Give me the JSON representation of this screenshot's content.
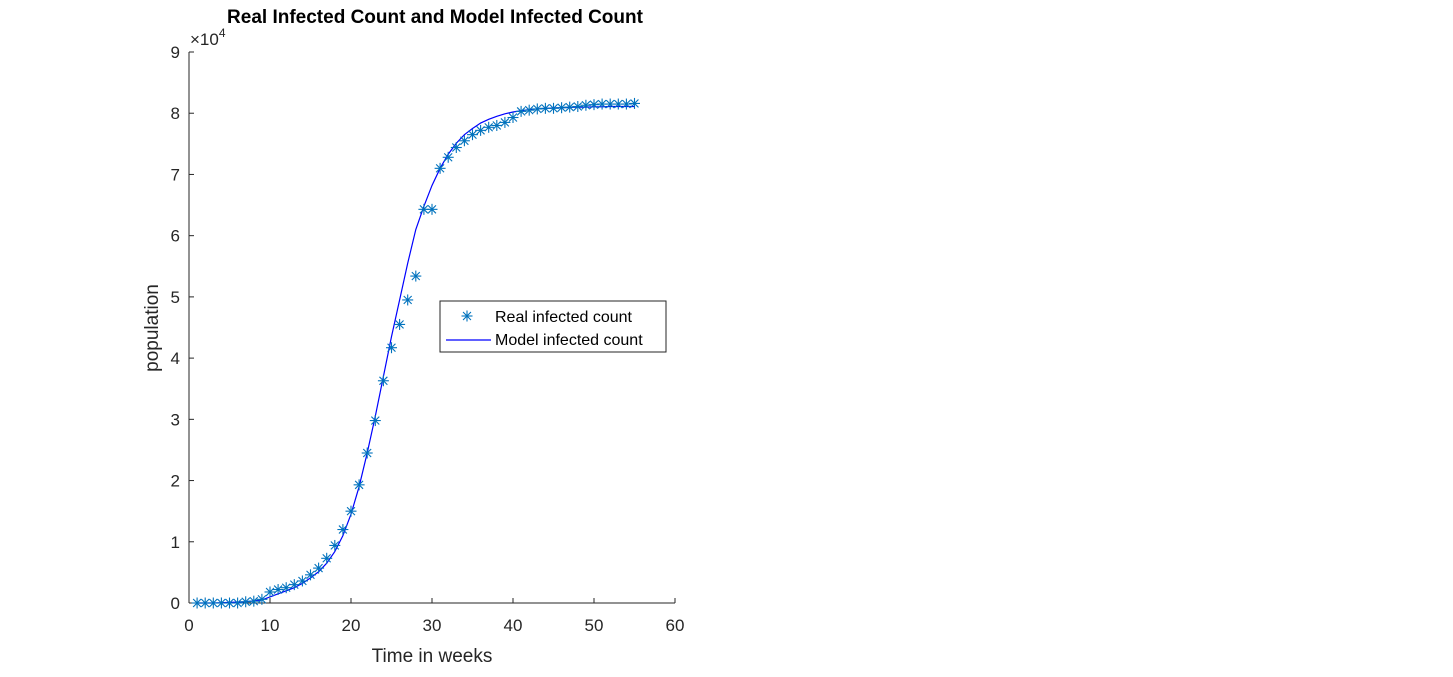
{
  "chart_data": {
    "type": "scatter",
    "title": "Real Infected Count and Model Infected Count",
    "xlabel": "Time in weeks",
    "ylabel": "population",
    "y_exponent_label": "×10",
    "y_exponent_power": "4",
    "xlim": [
      0,
      60
    ],
    "ylim": [
      0,
      90000
    ],
    "x_ticks": [
      "0",
      "10",
      "20",
      "30",
      "40",
      "50",
      "60"
    ],
    "y_ticks": [
      "0",
      "1",
      "2",
      "3",
      "4",
      "5",
      "6",
      "7",
      "8",
      "9"
    ],
    "grid": false,
    "legend_position": "center-right",
    "colors": {
      "real": "#0072BD",
      "model": "#0000FF",
      "axis": "#262626"
    },
    "series": [
      {
        "name": "Real infected count",
        "kind": "markers",
        "marker": "asterisk",
        "x": [
          1,
          2,
          3,
          4,
          5,
          6,
          7,
          8,
          9,
          10,
          11,
          12,
          13,
          14,
          15,
          16,
          17,
          18,
          19,
          20,
          21,
          22,
          23,
          24,
          25,
          26,
          27,
          28,
          29,
          30,
          31,
          32,
          33,
          34,
          35,
          36,
          37,
          38,
          39,
          40,
          41,
          42,
          43,
          44,
          45,
          46,
          47,
          48,
          49,
          50,
          51,
          52,
          53,
          54,
          55
        ],
        "y": [
          0,
          0,
          0,
          0,
          0,
          0,
          200,
          300,
          600,
          1800,
          2200,
          2500,
          3000,
          3600,
          4600,
          5700,
          7300,
          9400,
          12000,
          15000,
          19300,
          24500,
          29800,
          36300,
          41700,
          45500,
          49500,
          53400,
          64300,
          64300,
          71000,
          72800,
          74400,
          75500,
          76500,
          77200,
          77700,
          78000,
          78500,
          79300,
          80300,
          80500,
          80700,
          80800,
          80800,
          80900,
          81000,
          81100,
          81300,
          81400,
          81500,
          81500,
          81500,
          81500,
          81600
        ]
      },
      {
        "name": "Model infected count",
        "kind": "line",
        "x": [
          1,
          2,
          3,
          4,
          5,
          6,
          7,
          8,
          9,
          10,
          11,
          12,
          13,
          14,
          15,
          16,
          17,
          18,
          19,
          20,
          21,
          22,
          23,
          24,
          25,
          26,
          27,
          28,
          29,
          30,
          31,
          32,
          33,
          34,
          35,
          36,
          37,
          38,
          39,
          40,
          41,
          42,
          43,
          44,
          45,
          46,
          47,
          48,
          49,
          50,
          51,
          52,
          53,
          54,
          55
        ],
        "y": [
          0,
          0,
          0,
          50,
          100,
          150,
          200,
          350,
          500,
          1000,
          1500,
          2000,
          2500,
          3200,
          4100,
          5100,
          6500,
          8400,
          11000,
          14500,
          19000,
          24500,
          30500,
          37000,
          43500,
          49500,
          55500,
          61000,
          64800,
          68200,
          71000,
          73300,
          75100,
          76500,
          77500,
          78400,
          79000,
          79500,
          79900,
          80200,
          80400,
          80600,
          80700,
          80800,
          80850,
          80900,
          80950,
          81000,
          81000,
          81050,
          81050,
          81100,
          81100,
          81100,
          81100
        ]
      }
    ]
  }
}
